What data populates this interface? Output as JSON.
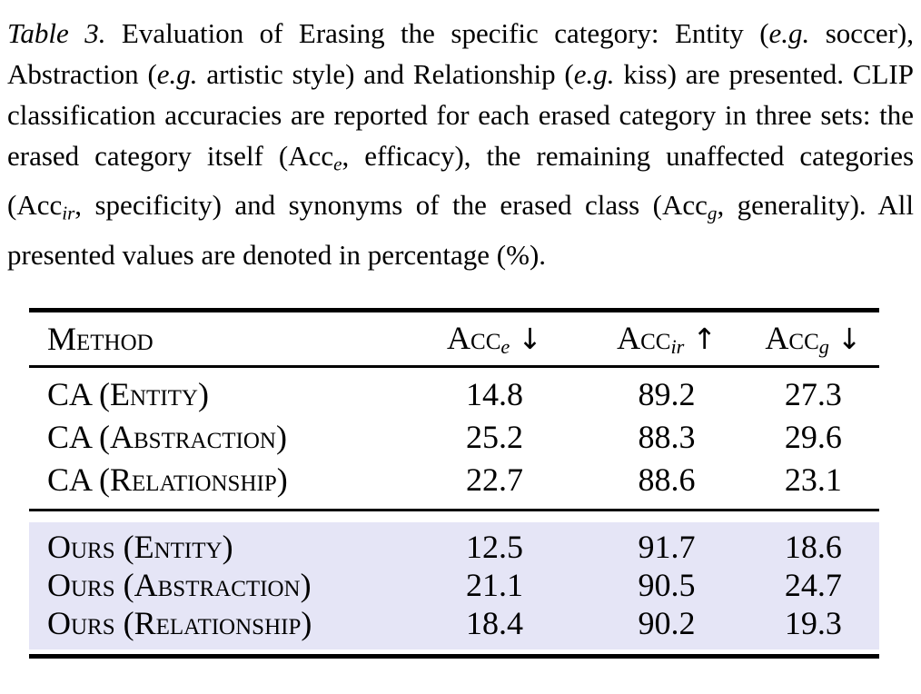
{
  "caption": {
    "label": "Table 3.",
    "segments": [
      {
        "text": "Table 3.",
        "style": "italic"
      },
      {
        "text": " Evaluation of Erasing the specific category: Entity (",
        "style": "normal"
      },
      {
        "text": "e.g.",
        "style": "italic"
      },
      {
        "text": " soccer), Abstraction (",
        "style": "normal"
      },
      {
        "text": "e.g.",
        "style": "italic"
      },
      {
        "text": " artistic style) and Relationship (",
        "style": "normal"
      },
      {
        "text": "e.g.",
        "style": "italic"
      },
      {
        "text": " kiss) are presented. CLIP classification accuracies are reported for each erased category in three sets: the erased category itself (Acc",
        "style": "normal"
      },
      {
        "text": "e",
        "style": "sub"
      },
      {
        "text": ", efficacy), the remaining unaffected categories (Acc",
        "style": "normal"
      },
      {
        "text": "ir",
        "style": "sub"
      },
      {
        "text": ", specificity) and synonyms of the erased class (Acc",
        "style": "normal"
      },
      {
        "text": "g",
        "style": "sub"
      },
      {
        "text": ", generality). All presented values are denoted in percentage (%).",
        "style": "normal"
      }
    ]
  },
  "table": {
    "highlight_color": "#e5e5f6",
    "columns": [
      {
        "label": "Method"
      },
      {
        "base": "Acc",
        "sub": "e",
        "arrow": "↓"
      },
      {
        "base": "Acc",
        "sub": "ir",
        "arrow": "↑"
      },
      {
        "base": "Acc",
        "sub": "g",
        "arrow": "↓"
      }
    ],
    "groups": [
      {
        "highlighted": false,
        "rows": [
          {
            "method": "CA (Entity)",
            "acc_e": "14.8",
            "acc_ir": "89.2",
            "acc_g": "27.3"
          },
          {
            "method": "CA (Abstraction)",
            "acc_e": "25.2",
            "acc_ir": "88.3",
            "acc_g": "29.6"
          },
          {
            "method": "CA (Relationship)",
            "acc_e": "22.7",
            "acc_ir": "88.6",
            "acc_g": "23.1"
          }
        ]
      },
      {
        "highlighted": true,
        "rows": [
          {
            "method": "Ours (Entity)",
            "acc_e": "12.5",
            "acc_ir": "91.7",
            "acc_g": "18.6"
          },
          {
            "method": "Ours (Abstraction)",
            "acc_e": "21.1",
            "acc_ir": "90.5",
            "acc_g": "24.7"
          },
          {
            "method": "Ours (Relationship)",
            "acc_e": "18.4",
            "acc_ir": "90.2",
            "acc_g": "19.3"
          }
        ]
      }
    ]
  }
}
